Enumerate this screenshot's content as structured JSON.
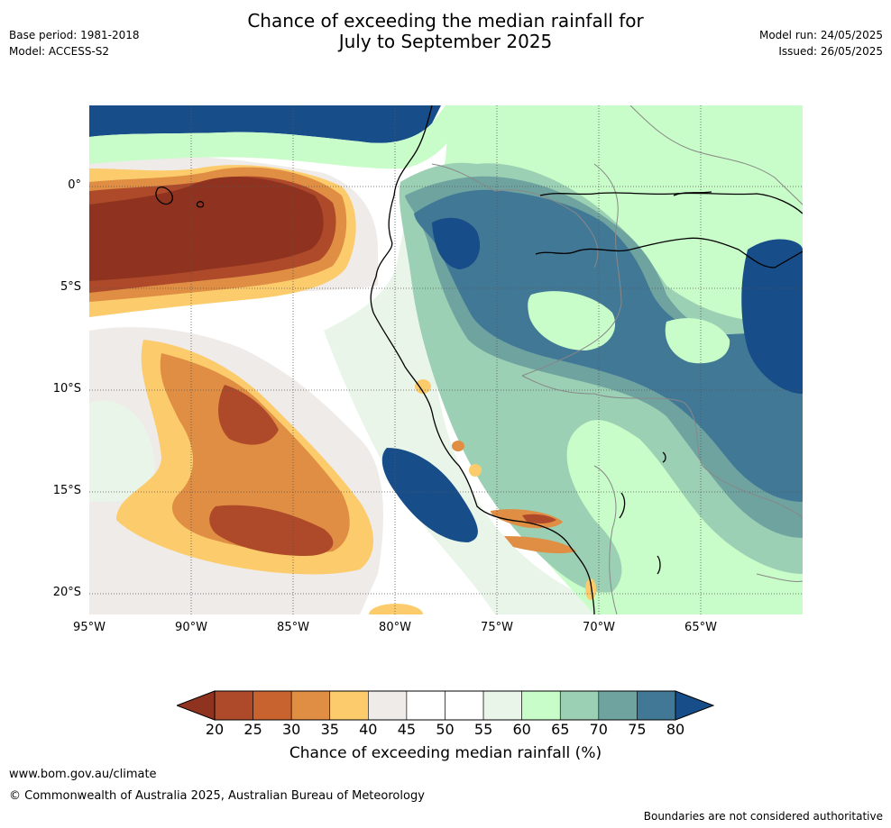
{
  "title": {
    "line1": "Chance of exceeding the median rainfall for",
    "line2": "July to September 2025"
  },
  "meta_left": {
    "base_period": "Base period: 1981-2018",
    "model": "Model: ACCESS-S2"
  },
  "meta_right": {
    "model_run": "Model run: 24/05/2025",
    "issued": "Issued: 26/05/2025"
  },
  "map": {
    "lon_range": [
      -95,
      -60
    ],
    "lat_range": [
      -21,
      4
    ],
    "lat_ticks": [
      "0°",
      "5°S",
      "10°S",
      "15°S",
      "20°S"
    ],
    "lon_ticks": [
      "95°W",
      "90°W",
      "85°W",
      "80°W",
      "75°W",
      "70°W",
      "65°W"
    ],
    "colors": {
      "below20": "#8f3320",
      "b20_25": "#ae4a2a",
      "b25_30": "#c8632f",
      "b30_35": "#df8e43",
      "b35_40": "#fccb6b",
      "b40_45": "#efebe8",
      "b45_55": "#ffffff",
      "b55_60": "#e8f5e8",
      "b60_65": "#c8fcc8",
      "b65_70": "#9cd0b4",
      "b70_75": "#6ea3a0",
      "b75_80": "#417896",
      "above80": "#174d89"
    }
  },
  "colorbar": {
    "ticks": [
      "20",
      "25",
      "30",
      "35",
      "40",
      "45",
      "50",
      "55",
      "60",
      "65",
      "70",
      "75",
      "80"
    ],
    "colors": [
      "#ae4a2a",
      "#c8632f",
      "#df8e43",
      "#fccb6b",
      "#efebe8",
      "#ffffff",
      "#ffffff",
      "#e8f5e8",
      "#c8fcc8",
      "#9cd0b4",
      "#6ea3a0",
      "#417896"
    ],
    "low_color": "#8f3320",
    "high_color": "#174d89",
    "label": "Chance of exceeding median rainfall (%)"
  },
  "footer": {
    "url": "www.bom.gov.au/climate",
    "copyright": "© Commonwealth of Australia 2025, Australian Bureau of Meteorology",
    "note": "Boundaries are not considered authoritative"
  }
}
